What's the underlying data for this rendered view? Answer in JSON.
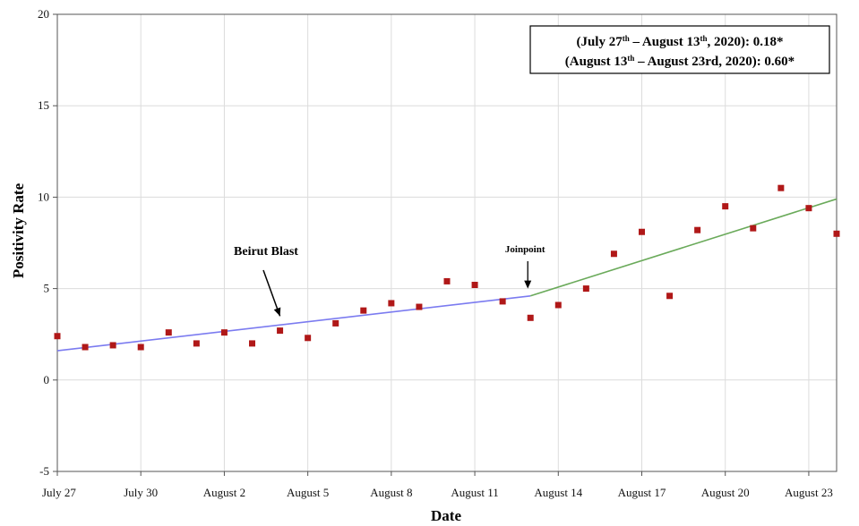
{
  "chart_data": {
    "type": "scatter",
    "title": "",
    "xlabel": "Date",
    "ylabel": "Positivity Rate",
    "ylim": [
      -5,
      20
    ],
    "yticks": [
      -5,
      0,
      5,
      10,
      15,
      20
    ],
    "x_tick_labels": [
      "July 27",
      "July 30",
      "August 2",
      "August 5",
      "August 8",
      "August 11",
      "August 14",
      "August 17",
      "August 20",
      "August 23"
    ],
    "x_tick_dates": [
      "2020-07-27",
      "2020-07-30",
      "2020-08-02",
      "2020-08-05",
      "2020-08-08",
      "2020-08-11",
      "2020-08-14",
      "2020-08-17",
      "2020-08-20",
      "2020-08-23"
    ],
    "xlim": [
      "2020-07-27",
      "2020-08-24"
    ],
    "grid": true,
    "points": [
      {
        "date": "2020-07-27",
        "y": 2.4
      },
      {
        "date": "2020-07-28",
        "y": 1.8
      },
      {
        "date": "2020-07-29",
        "y": 1.9
      },
      {
        "date": "2020-07-30",
        "y": 1.8
      },
      {
        "date": "2020-07-31",
        "y": 2.6
      },
      {
        "date": "2020-08-01",
        "y": 2.0
      },
      {
        "date": "2020-08-02",
        "y": 2.6
      },
      {
        "date": "2020-08-03",
        "y": 2.0
      },
      {
        "date": "2020-08-04",
        "y": 2.7
      },
      {
        "date": "2020-08-05",
        "y": 2.3
      },
      {
        "date": "2020-08-06",
        "y": 3.1
      },
      {
        "date": "2020-08-07",
        "y": 3.8
      },
      {
        "date": "2020-08-08",
        "y": 4.2
      },
      {
        "date": "2020-08-09",
        "y": 4.0
      },
      {
        "date": "2020-08-10",
        "y": 5.4
      },
      {
        "date": "2020-08-11",
        "y": 5.2
      },
      {
        "date": "2020-08-12",
        "y": 4.3
      },
      {
        "date": "2020-08-13",
        "y": 3.4
      },
      {
        "date": "2020-08-14",
        "y": 4.1
      },
      {
        "date": "2020-08-15",
        "y": 5.0
      },
      {
        "date": "2020-08-16",
        "y": 6.9
      },
      {
        "date": "2020-08-17",
        "y": 8.1
      },
      {
        "date": "2020-08-18",
        "y": 4.6
      },
      {
        "date": "2020-08-19",
        "y": 8.2
      },
      {
        "date": "2020-08-20",
        "y": 9.5
      },
      {
        "date": "2020-08-21",
        "y": 8.3
      },
      {
        "date": "2020-08-22",
        "y": 10.5
      },
      {
        "date": "2020-08-23",
        "y": 9.4
      },
      {
        "date": "2020-08-24",
        "y": 8.0
      }
    ],
    "trend_segments": [
      {
        "from": {
          "date": "2020-07-27",
          "y": 1.6
        },
        "to": {
          "date": "2020-08-13",
          "y": 4.6
        },
        "color": "#7b7bf0"
      },
      {
        "from": {
          "date": "2020-08-13",
          "y": 4.6
        },
        "to": {
          "date": "2020-08-24",
          "y": 9.9
        },
        "color": "#6aaa5a"
      }
    ],
    "point_color": "#b01818",
    "annotations": [
      {
        "id": "blast",
        "text": "Beirut Blast",
        "points_to": {
          "date": "2020-08-04",
          "y": 3.3
        }
      },
      {
        "id": "joinpoint",
        "text": "Joinpoint",
        "points_to": {
          "date": "2020-08-13",
          "y": 5.0
        }
      }
    ],
    "legend": {
      "placement": "top-right",
      "lines": [
        {
          "parts": [
            {
              "text": "(July 27",
              "sup": false
            },
            {
              "text": "th",
              "sup": true
            },
            {
              "text": " – August 13",
              "sup": false
            },
            {
              "text": "th",
              "sup": true
            },
            {
              "text": ", 2020): 0.18*",
              "sup": false
            }
          ]
        },
        {
          "parts": [
            {
              "text": "(August 13",
              "sup": false
            },
            {
              "text": "th",
              "sup": true
            },
            {
              "text": " – August 23rd, 2020): 0.60*",
              "sup": false
            }
          ]
        }
      ]
    }
  }
}
